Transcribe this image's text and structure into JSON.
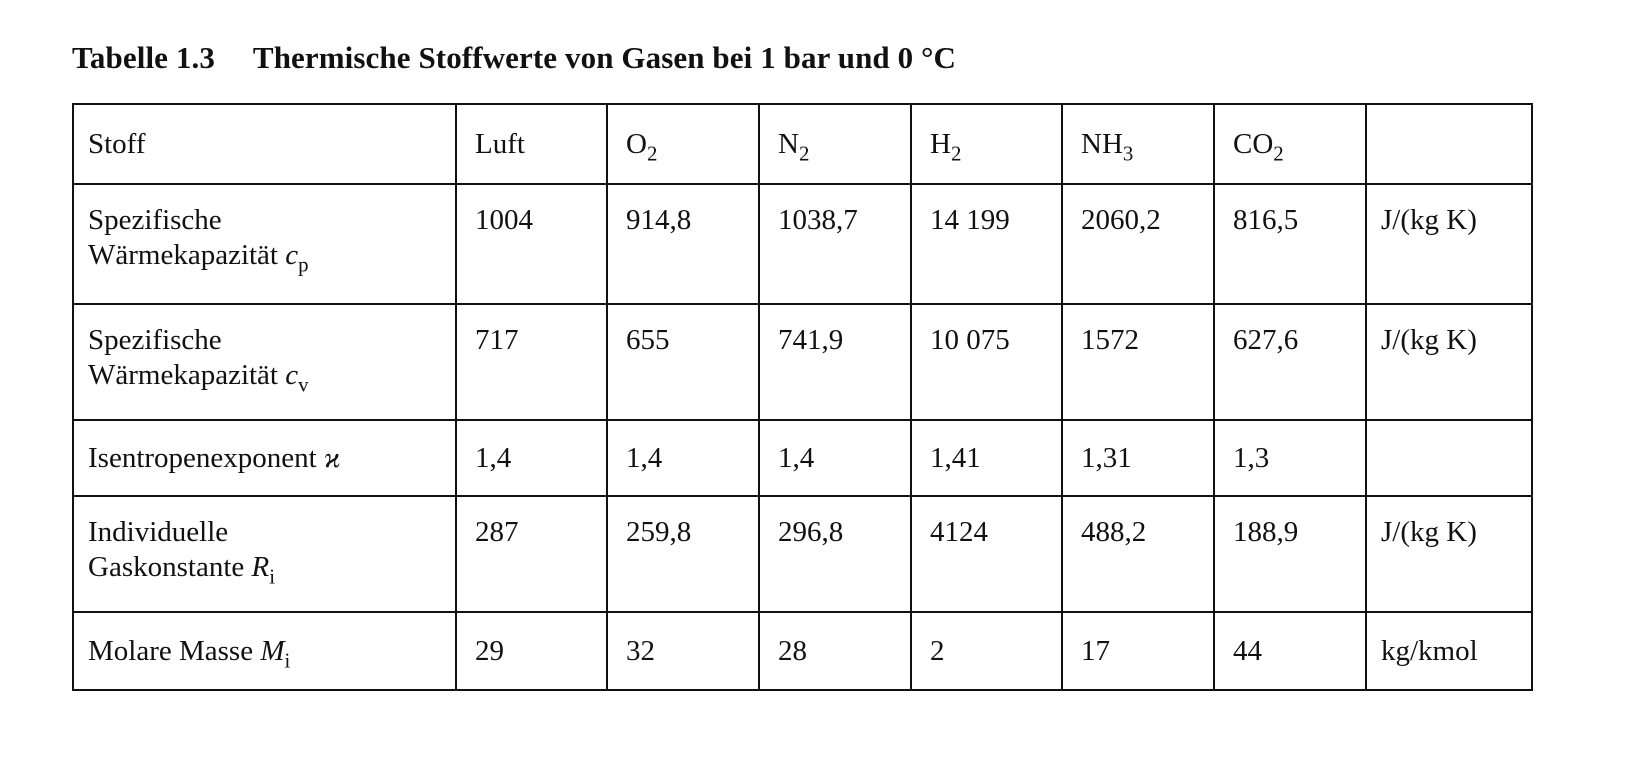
{
  "caption": {
    "number": "Tabelle 1.3",
    "title": "Thermische Stoffwerte von Gasen bei 1 bar und 0 °C"
  },
  "table": {
    "header": {
      "label": "Stoff",
      "columns": [
        {
          "base": "Luft",
          "sub": ""
        },
        {
          "base": "O",
          "sub": "2"
        },
        {
          "base": "N",
          "sub": "2"
        },
        {
          "base": "H",
          "sub": "2"
        },
        {
          "base": "NH",
          "sub": "3"
        },
        {
          "base": "CO",
          "sub": "2"
        }
      ],
      "unit": ""
    },
    "rows": [
      {
        "label_line1": "Spezifische",
        "label_line2": "Wärmekapazität",
        "symbol": "c",
        "symbol_sub": "p",
        "values": [
          "1004",
          "914,8",
          "1038,7",
          "14 199",
          "2060,2",
          "816,5"
        ],
        "unit": "J/(kg K)"
      },
      {
        "label_line1": "Spezifische",
        "label_line2": "Wärmekapazität",
        "symbol": "c",
        "symbol_sub": "v",
        "values": [
          "717",
          "655",
          "741,9",
          "10 075",
          "1572",
          "627,6"
        ],
        "unit": "J/(kg K)"
      },
      {
        "label_line1": "",
        "label_line2": "Isentropenexponent",
        "symbol": "ϰ",
        "symbol_sub": "",
        "values": [
          "1,4",
          "1,4",
          "1,4",
          "1,41",
          "1,31",
          "1,3"
        ],
        "unit": ""
      },
      {
        "label_line1": "Individuelle",
        "label_line2": "Gaskonstante",
        "symbol": "R",
        "symbol_sub": "i",
        "values": [
          "287",
          "259,8",
          "296,8",
          "4124",
          "488,2",
          "188,9"
        ],
        "unit": "J/(kg K)"
      },
      {
        "label_line1": "",
        "label_line2": "Molare Masse",
        "symbol": "M",
        "symbol_sub": "i",
        "values": [
          "29",
          "32",
          "28",
          "2",
          "17",
          "44"
        ],
        "unit": "kg/kmol"
      }
    ]
  }
}
